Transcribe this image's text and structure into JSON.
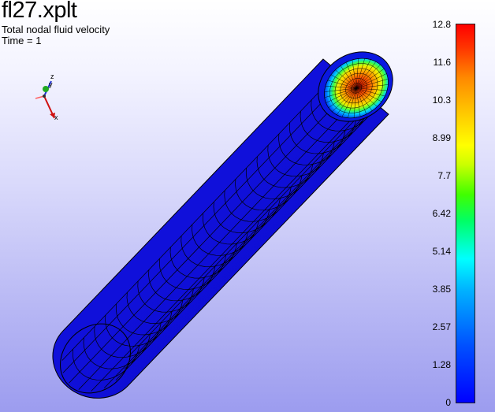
{
  "plot": {
    "filename": "fl27.xplt",
    "variable": "Total nodal fluid velocity",
    "time_label": "Time = 1"
  },
  "axis_triad": {
    "labels": [
      "z",
      "y",
      "x"
    ]
  },
  "colorbar": {
    "ticks": [
      "12.8",
      "11.6",
      "10.3",
      "8.99",
      "7.7",
      "6.42",
      "5.14",
      "3.85",
      "2.57",
      "1.28",
      "0"
    ],
    "min": 0,
    "max": 12.8,
    "colors": [
      "#0000ff",
      "#00ffff",
      "#00ff00",
      "#ffff00",
      "#ff8800",
      "#ff0000"
    ]
  },
  "model": {
    "shape": "cylinder",
    "surface_color": "#1010e0",
    "end_cap": "velocity-profile"
  }
}
